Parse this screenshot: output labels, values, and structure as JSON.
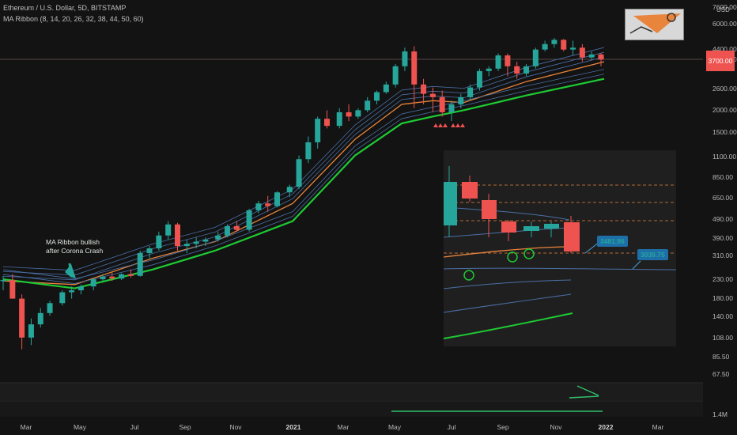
{
  "header": {
    "symbol": "Ethereum / U.S. Dollar, 5D, BITSTAMP",
    "indicator": "MA Ribbon (8, 14, 20, 26, 32, 38, 44, 50, 60)"
  },
  "price_axis": {
    "unit": "USD",
    "ticks": [
      "7600.00",
      "6000.00",
      "4400.00",
      "3600.00",
      "2600.00",
      "2000.00",
      "1500.00",
      "1100.00",
      "850.00",
      "650.00",
      "490.00",
      "390.00",
      "310.00",
      "230.00",
      "180.00",
      "140.00",
      "108.00",
      "85.50",
      "67.50"
    ],
    "current_price": "3700.00",
    "volume_label": "1.4M"
  },
  "time_axis": [
    {
      "label": "Mar",
      "bold": false
    },
    {
      "label": "May",
      "bold": false
    },
    {
      "label": "Jul",
      "bold": false
    },
    {
      "label": "Sep",
      "bold": false
    },
    {
      "label": "Nov",
      "bold": false
    },
    {
      "label": "2021",
      "bold": true
    },
    {
      "label": "Mar",
      "bold": false
    },
    {
      "label": "May",
      "bold": false
    },
    {
      "label": "Jul",
      "bold": false
    },
    {
      "label": "Sep",
      "bold": false
    },
    {
      "label": "Nov",
      "bold": false
    },
    {
      "label": "2022",
      "bold": true
    },
    {
      "label": "Mar",
      "bold": false
    }
  ],
  "annotation": {
    "line1": "MA Ribbon bullish",
    "line2": "after Corona Crash"
  },
  "inset": {
    "label_price": "3481.96",
    "label_ma": "3039.75"
  },
  "colors": {
    "bg": "#131313",
    "up": "#26a69a",
    "down": "#ef5350",
    "ma_slow": "#1ecb33",
    "ma_mid": "#e8843c",
    "ma_fast": "#4a6fa5"
  },
  "chart_data": {
    "type": "candlestick",
    "title": "Ethereum / U.S. Dollar, 5D, BITSTAMP",
    "y_scale": "log",
    "ylim": [
      67.5,
      7600
    ],
    "x_range": [
      "2020-03",
      "2022-03"
    ],
    "candles": [
      [
        2020.07,
        225,
        240,
        200,
        228
      ],
      [
        2020.1,
        228,
        245,
        210,
        180
      ],
      [
        2020.13,
        180,
        190,
        95,
        110
      ],
      [
        2020.16,
        110,
        140,
        100,
        130
      ],
      [
        2020.19,
        130,
        160,
        125,
        150
      ],
      [
        2020.22,
        150,
        175,
        145,
        170
      ],
      [
        2020.26,
        170,
        200,
        165,
        195
      ],
      [
        2020.29,
        195,
        210,
        180,
        200
      ],
      [
        2020.32,
        200,
        215,
        190,
        210
      ],
      [
        2020.36,
        210,
        235,
        200,
        230
      ],
      [
        2020.39,
        230,
        245,
        220,
        238
      ],
      [
        2020.42,
        238,
        250,
        225,
        232
      ],
      [
        2020.45,
        232,
        248,
        228,
        245
      ],
      [
        2020.48,
        245,
        260,
        235,
        240
      ],
      [
        2020.51,
        240,
        330,
        238,
        320
      ],
      [
        2020.54,
        320,
        350,
        300,
        340
      ],
      [
        2020.57,
        340,
        420,
        330,
        400
      ],
      [
        2020.6,
        400,
        480,
        380,
        460
      ],
      [
        2020.63,
        460,
        470,
        330,
        350
      ],
      [
        2020.66,
        350,
        380,
        320,
        360
      ],
      [
        2020.69,
        360,
        390,
        340,
        370
      ],
      [
        2020.72,
        370,
        390,
        350,
        380
      ],
      [
        2020.76,
        380,
        420,
        370,
        400
      ],
      [
        2020.79,
        400,
        460,
        390,
        450
      ],
      [
        2020.82,
        450,
        480,
        420,
        430
      ],
      [
        2020.86,
        430,
        560,
        420,
        550
      ],
      [
        2020.89,
        550,
        620,
        530,
        600
      ],
      [
        2020.92,
        600,
        660,
        540,
        580
      ],
      [
        2020.95,
        580,
        700,
        570,
        690
      ],
      [
        2020.99,
        690,
        760,
        650,
        740
      ],
      [
        2021.02,
        740,
        1100,
        720,
        1050
      ],
      [
        2021.05,
        1050,
        1400,
        1000,
        1300
      ],
      [
        2021.08,
        1300,
        1800,
        1200,
        1750
      ],
      [
        2021.11,
        1750,
        1950,
        1550,
        1600
      ],
      [
        2021.15,
        1600,
        2000,
        1550,
        1900
      ],
      [
        2021.18,
        1900,
        2100,
        1700,
        1800
      ],
      [
        2021.21,
        1800,
        2000,
        1750,
        1950
      ],
      [
        2021.24,
        1950,
        2300,
        1900,
        2200
      ],
      [
        2021.27,
        2200,
        2500,
        2100,
        2450
      ],
      [
        2021.3,
        2450,
        2800,
        2400,
        2700
      ],
      [
        2021.33,
        2700,
        3500,
        2600,
        3400
      ],
      [
        2021.36,
        3400,
        4300,
        3200,
        4100
      ],
      [
        2021.39,
        4100,
        4380,
        2000,
        2700
      ],
      [
        2021.42,
        2700,
        2900,
        2100,
        2400
      ],
      [
        2021.45,
        2400,
        2600,
        1900,
        2300
      ],
      [
        2021.48,
        2300,
        2500,
        1800,
        1900
      ],
      [
        2021.51,
        1900,
        2200,
        1700,
        2100
      ],
      [
        2021.54,
        2100,
        2400,
        2000,
        2300
      ],
      [
        2021.57,
        2300,
        2700,
        2200,
        2600
      ],
      [
        2021.6,
        2600,
        3300,
        2500,
        3200
      ],
      [
        2021.63,
        3200,
        3400,
        3000,
        3300
      ],
      [
        2021.66,
        3300,
        4000,
        3200,
        3900
      ],
      [
        2021.69,
        3900,
        4000,
        3000,
        3400
      ],
      [
        2021.72,
        3400,
        3600,
        2900,
        3100
      ],
      [
        2021.75,
        3100,
        3500,
        3000,
        3400
      ],
      [
        2021.78,
        3400,
        4300,
        3300,
        4200
      ],
      [
        2021.81,
        4200,
        4700,
        4100,
        4500
      ],
      [
        2021.84,
        4500,
        4870,
        4300,
        4750
      ],
      [
        2021.87,
        4750,
        4800,
        4100,
        4200
      ],
      [
        2021.9,
        4200,
        4700,
        3900,
        4300
      ],
      [
        2021.93,
        4300,
        4500,
        3600,
        3800
      ],
      [
        2021.96,
        3800,
        4100,
        3700,
        3950
      ],
      [
        2021.99,
        3950,
        4000,
        3400,
        3700
      ]
    ],
    "ma_slow": [
      [
        2020.07,
        230
      ],
      [
        2020.3,
        205
      ],
      [
        2020.55,
        260
      ],
      [
        2020.75,
        330
      ],
      [
        2021.0,
        480
      ],
      [
        2021.2,
        1100
      ],
      [
        2021.35,
        1650
      ],
      [
        2021.45,
        1800
      ],
      [
        2021.55,
        1950
      ],
      [
        2021.75,
        2350
      ],
      [
        2022.0,
        2900
      ]
    ],
    "ma_mid": [
      [
        2020.07,
        225
      ],
      [
        2020.3,
        215
      ],
      [
        2020.55,
        300
      ],
      [
        2020.75,
        370
      ],
      [
        2021.0,
        600
      ],
      [
        2021.2,
        1350
      ],
      [
        2021.35,
        2100
      ],
      [
        2021.45,
        2200
      ],
      [
        2021.55,
        2150
      ],
      [
        2021.75,
        2800
      ],
      [
        2022.0,
        3600
      ]
    ],
    "annotations": [
      "MA Ribbon bullish after Corona Crash"
    ]
  }
}
